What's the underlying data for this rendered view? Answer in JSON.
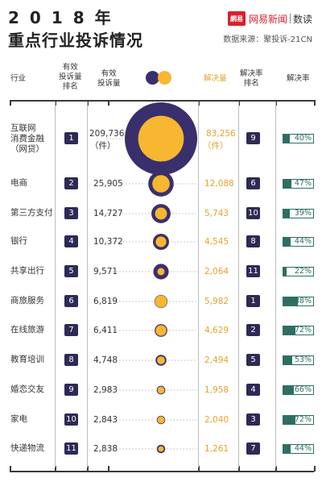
{
  "header": {
    "year": "2018年",
    "title": "重点行业投诉情况",
    "brand_logo": "網易",
    "brand_name": "网易新闻",
    "brand_column": "数读",
    "source": "数据来源：聚投诉-21CN"
  },
  "columns": {
    "industry": "行业",
    "complaint_rank": "有效\n投诉量\n排名",
    "complaints": "有效\n投诉量",
    "resolved": "解决量",
    "resolution_rank": "解决率\n排名",
    "resolution_rate": "解决率"
  },
  "colors": {
    "complaints": "#3a2f6d",
    "resolved": "#f7b730",
    "rate": "#2f6e63"
  },
  "chart_data": {
    "type": "table",
    "bubble_legend": [
      "有效投诉量",
      "解决量"
    ],
    "rows": [
      {
        "industry": "互联网\n消费金融\n（网贷）",
        "complaint_rank": "1",
        "complaints": "209,736",
        "complaints_unit": "（件）",
        "resolved": "83,256",
        "resolved_unit": "（件）",
        "resolution_rank": "9",
        "resolution_rate": "40%",
        "complaints_value": 209736,
        "resolved_value": 83256,
        "rate_value": 0.4
      },
      {
        "industry": "电商",
        "complaint_rank": "2",
        "complaints": "25,905",
        "resolved": "12,088",
        "resolution_rank": "6",
        "resolution_rate": "47%",
        "complaints_value": 25905,
        "resolved_value": 12088,
        "rate_value": 0.47
      },
      {
        "industry": "第三方支付",
        "complaint_rank": "3",
        "complaints": "14,727",
        "resolved": "5,743",
        "resolution_rank": "10",
        "resolution_rate": "39%",
        "complaints_value": 14727,
        "resolved_value": 5743,
        "rate_value": 0.39
      },
      {
        "industry": "银行",
        "complaint_rank": "4",
        "complaints": "10,372",
        "resolved": "4,545",
        "resolution_rank": "8",
        "resolution_rate": "44%",
        "complaints_value": 10372,
        "resolved_value": 4545,
        "rate_value": 0.44
      },
      {
        "industry": "共享出行",
        "complaint_rank": "5",
        "complaints": "9,571",
        "resolved": "2,064",
        "resolution_rank": "11",
        "resolution_rate": "22%",
        "complaints_value": 9571,
        "resolved_value": 2064,
        "rate_value": 0.22
      },
      {
        "industry": "商旅服务",
        "complaint_rank": "6",
        "complaints": "6,819",
        "resolved": "5,982",
        "resolution_rank": "1",
        "resolution_rate": "88%",
        "complaints_value": 6819,
        "resolved_value": 5982,
        "rate_value": 0.88
      },
      {
        "industry": "在线旅游",
        "complaint_rank": "7",
        "complaints": "6,411",
        "resolved": "4,629",
        "resolution_rank": "2",
        "resolution_rate": "72%",
        "complaints_value": 6411,
        "resolved_value": 4629,
        "rate_value": 0.72
      },
      {
        "industry": "教育培训",
        "complaint_rank": "8",
        "complaints": "4,748",
        "resolved": "2,494",
        "resolution_rank": "5",
        "resolution_rate": "53%",
        "complaints_value": 4748,
        "resolved_value": 2494,
        "rate_value": 0.53
      },
      {
        "industry": "婚恋交友",
        "complaint_rank": "9",
        "complaints": "2,983",
        "resolved": "1,958",
        "resolution_rank": "4",
        "resolution_rate": "66%",
        "complaints_value": 2983,
        "resolved_value": 1958,
        "rate_value": 0.66
      },
      {
        "industry": "家电",
        "complaint_rank": "10",
        "complaints": "2,843",
        "resolved": "2,040",
        "resolution_rank": "3",
        "resolution_rate": "72%",
        "complaints_value": 2843,
        "resolved_value": 2040,
        "rate_value": 0.72
      },
      {
        "industry": "快递物流",
        "complaint_rank": "11",
        "complaints": "2,838",
        "resolved": "1,261",
        "resolution_rank": "7",
        "resolution_rate": "44%",
        "complaints_value": 2838,
        "resolved_value": 1261,
        "rate_value": 0.44
      }
    ]
  }
}
